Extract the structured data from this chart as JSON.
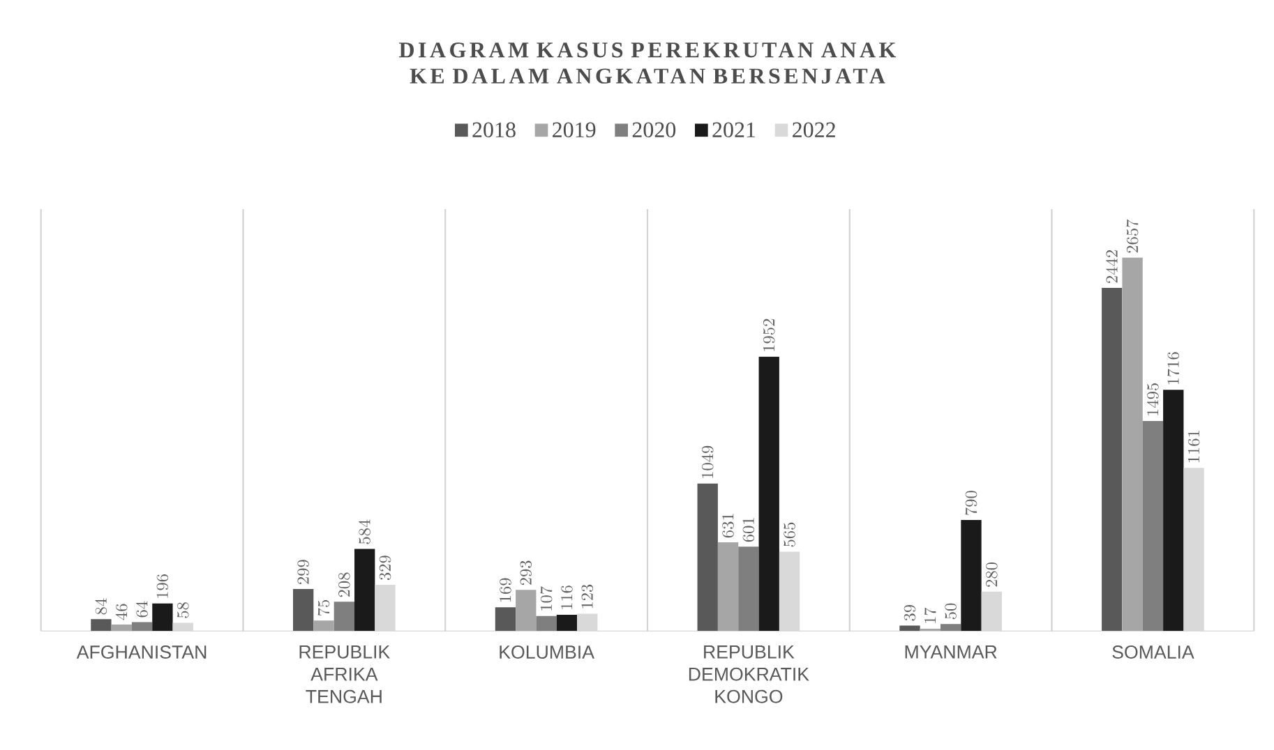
{
  "chart_data": {
    "type": "bar",
    "title": "DIAGRAM KASUS PEREKRUTAN ANAK KE DALAM ANGKATAN BERSENJATA",
    "categories": [
      "AFGHANISTAN",
      "REPUBLIK AFRIKA TENGAH",
      "KOLUMBIA",
      "REPUBLIK DEMOKRATIK KONGO",
      "MYANMAR",
      "SOMALIA"
    ],
    "series": [
      {
        "name": "2018",
        "color": "#595959",
        "values": [
          84,
          299,
          169,
          1049,
          39,
          2442
        ]
      },
      {
        "name": "2019",
        "color": "#a6a6a6",
        "values": [
          46,
          75,
          293,
          631,
          17,
          2657
        ]
      },
      {
        "name": "2020",
        "color": "#7f7f7f",
        "values": [
          64,
          208,
          107,
          601,
          50,
          1495
        ]
      },
      {
        "name": "2021",
        "color": "#1a1a1a",
        "values": [
          196,
          584,
          116,
          1952,
          790,
          1716
        ]
      },
      {
        "name": "2022",
        "color": "#d9d9d9",
        "values": [
          58,
          329,
          123,
          565,
          280,
          1161
        ]
      }
    ],
    "data_labels": true,
    "grid": "x",
    "legend": "top"
  }
}
